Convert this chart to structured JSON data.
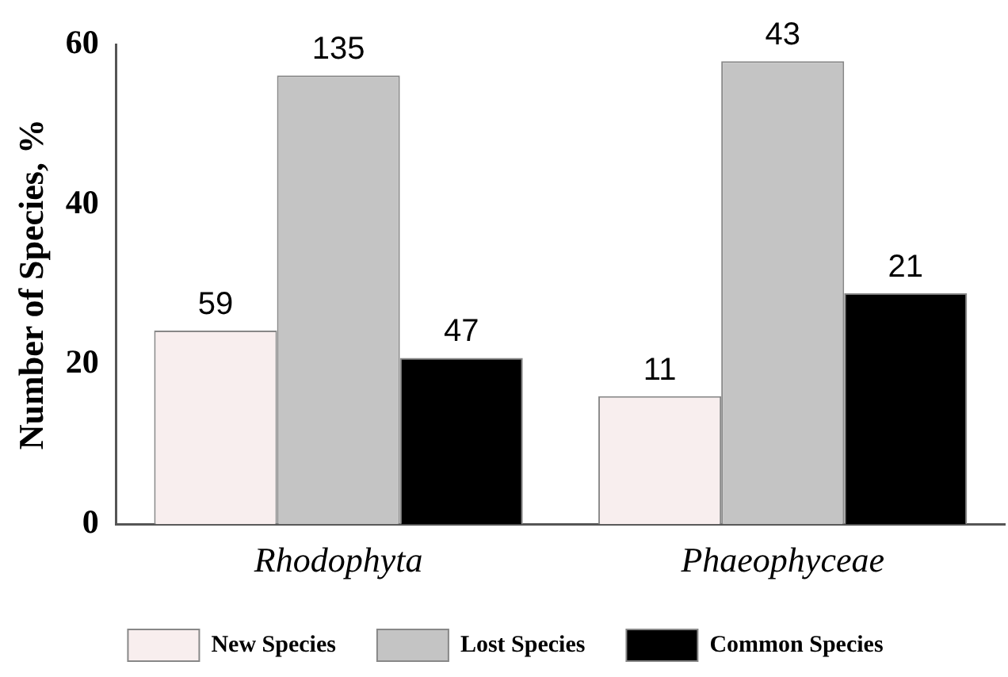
{
  "chart_data": {
    "type": "bar",
    "ylabel": "Number of Species, %",
    "categories": [
      "Rhodophyta",
      "Phaeophyceae"
    ],
    "series": [
      {
        "name": "New Species",
        "color": "#f8eeee",
        "values": [
          24.2,
          16.0
        ]
      },
      {
        "name": "Lost Species",
        "color": "#c4c4c4",
        "values": [
          56.1,
          57.9
        ]
      },
      {
        "name": "Common Species",
        "color": "#000000",
        "values": [
          20.8,
          28.9
        ]
      }
    ],
    "annotations": [
      "59",
      "135",
      "47",
      "11",
      "43",
      "21"
    ],
    "ylim": [
      0,
      60
    ],
    "yticks": [
      0,
      20,
      40,
      60
    ],
    "grid": false,
    "legend": "bottom"
  }
}
